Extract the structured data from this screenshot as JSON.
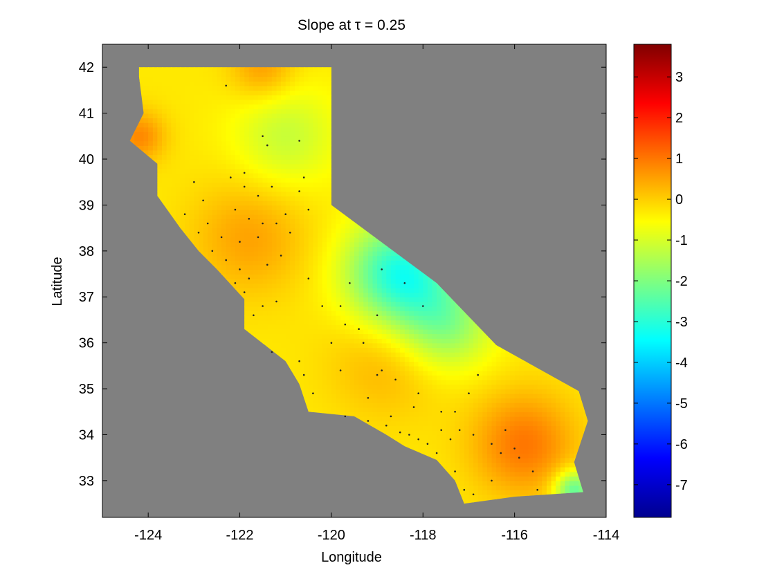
{
  "chart_data": {
    "type": "heatmap",
    "title": "Slope at τ = 0.25",
    "xlabel": "Longitude",
    "ylabel": "Latitude",
    "xlim": [
      -125,
      -114
    ],
    "ylim": [
      32.2,
      42.5
    ],
    "xticks": [
      -124,
      -122,
      -120,
      -118,
      -116,
      -114
    ],
    "yticks": [
      33,
      34,
      35,
      36,
      37,
      38,
      39,
      40,
      41,
      42
    ],
    "background_color": "#808080",
    "colorbar": {
      "colormap": "jet",
      "range": [
        -7.8,
        3.8
      ],
      "ticks": [
        -7,
        -6,
        -5,
        -4,
        -3,
        -2,
        -1,
        0,
        1,
        2,
        3
      ]
    },
    "region_outline": [
      [
        -124.2,
        42.0
      ],
      [
        -120.0,
        42.0
      ],
      [
        -120.0,
        39.0
      ],
      [
        -117.7,
        37.3
      ],
      [
        -116.4,
        35.95
      ],
      [
        -114.6,
        34.95
      ],
      [
        -114.4,
        34.3
      ],
      [
        -114.7,
        33.4
      ],
      [
        -114.5,
        32.75
      ],
      [
        -116.0,
        32.65
      ],
      [
        -117.1,
        32.5
      ],
      [
        -117.3,
        33.0
      ],
      [
        -117.7,
        33.45
      ],
      [
        -118.4,
        33.75
      ],
      [
        -118.8,
        34.0
      ],
      [
        -119.5,
        34.4
      ],
      [
        -120.5,
        34.5
      ],
      [
        -120.7,
        35.1
      ],
      [
        -121.0,
        35.6
      ],
      [
        -121.9,
        36.3
      ],
      [
        -121.9,
        36.95
      ],
      [
        -122.5,
        37.6
      ],
      [
        -122.9,
        38.0
      ],
      [
        -123.3,
        38.5
      ],
      [
        -123.8,
        39.2
      ],
      [
        -123.8,
        39.9
      ],
      [
        -124.4,
        40.4
      ],
      [
        -124.1,
        41.0
      ],
      [
        -124.2,
        41.8
      ]
    ],
    "slope_field_centers": [
      {
        "lon": -121.8,
        "lat": 38.3,
        "value": 0.5,
        "spread": 0.9
      },
      {
        "lon": -118.8,
        "lat": 35.6,
        "value": 0.3,
        "spread": 0.9
      },
      {
        "lon": -115.8,
        "lat": 33.8,
        "value": 1.0,
        "spread": 0.8
      },
      {
        "lon": -124.2,
        "lat": 40.5,
        "value": 0.8,
        "spread": 0.4
      },
      {
        "lon": -121.5,
        "lat": 42.0,
        "value": 0.6,
        "spread": 0.5
      },
      {
        "lon": -118.5,
        "lat": 37.5,
        "value": -3.2,
        "spread": 0.8
      },
      {
        "lon": -117.5,
        "lat": 36.4,
        "value": -1.8,
        "spread": 0.7
      },
      {
        "lon": -114.7,
        "lat": 32.8,
        "value": -2.5,
        "spread": 0.3
      },
      {
        "lon": -121.0,
        "lat": 40.5,
        "value": -1.2,
        "spread": 0.8
      }
    ],
    "slope_baseline": -0.3,
    "stations": [
      [
        -122.3,
        41.6
      ],
      [
        -121.5,
        40.5
      ],
      [
        -121.4,
        40.3
      ],
      [
        -120.7,
        40.4
      ],
      [
        -121.9,
        39.7
      ],
      [
        -122.2,
        39.6
      ],
      [
        -121.6,
        39.2
      ],
      [
        -121.3,
        39.4
      ],
      [
        -120.7,
        39.3
      ],
      [
        -121.9,
        39.4
      ],
      [
        -122.8,
        39.1
      ],
      [
        -122.1,
        38.9
      ],
      [
        -121.8,
        38.7
      ],
      [
        -121.5,
        38.6
      ],
      [
        -121.2,
        38.6
      ],
      [
        -121.0,
        38.8
      ],
      [
        -121.6,
        38.3
      ],
      [
        -122.0,
        38.2
      ],
      [
        -122.4,
        38.3
      ],
      [
        -122.6,
        38.0
      ],
      [
        -122.3,
        37.8
      ],
      [
        -122.0,
        37.6
      ],
      [
        -121.8,
        37.4
      ],
      [
        -121.4,
        37.7
      ],
      [
        -121.1,
        37.9
      ],
      [
        -120.9,
        38.4
      ],
      [
        -122.1,
        37.3
      ],
      [
        -121.9,
        37.1
      ],
      [
        -121.5,
        36.8
      ],
      [
        -121.7,
        36.6
      ],
      [
        -121.2,
        36.9
      ],
      [
        -120.5,
        37.4
      ],
      [
        -120.2,
        36.8
      ],
      [
        -119.8,
        36.8
      ],
      [
        -119.6,
        37.3
      ],
      [
        -119.4,
        36.3
      ],
      [
        -119.0,
        36.6
      ],
      [
        -118.9,
        35.4
      ],
      [
        -119.0,
        35.3
      ],
      [
        -118.6,
        35.2
      ],
      [
        -119.8,
        35.4
      ],
      [
        -120.6,
        35.3
      ],
      [
        -120.4,
        34.9
      ],
      [
        -119.7,
        34.4
      ],
      [
        -119.2,
        34.3
      ],
      [
        -118.8,
        34.2
      ],
      [
        -118.5,
        34.05
      ],
      [
        -118.3,
        34.0
      ],
      [
        -118.1,
        33.9
      ],
      [
        -117.9,
        33.8
      ],
      [
        -117.6,
        34.1
      ],
      [
        -117.2,
        34.1
      ],
      [
        -116.9,
        34.0
      ],
      [
        -117.4,
        33.9
      ],
      [
        -117.7,
        33.6
      ],
      [
        -117.3,
        33.2
      ],
      [
        -117.1,
        32.8
      ],
      [
        -116.9,
        32.7
      ],
      [
        -116.5,
        33.0
      ],
      [
        -116.3,
        33.6
      ],
      [
        -116.0,
        33.7
      ],
      [
        -115.6,
        33.2
      ],
      [
        -115.5,
        32.8
      ],
      [
        -115.9,
        33.5
      ],
      [
        -116.5,
        33.8
      ],
      [
        -116.2,
        34.1
      ],
      [
        -118.2,
        34.6
      ],
      [
        -118.1,
        34.9
      ],
      [
        -117.6,
        34.5
      ],
      [
        -117.3,
        34.5
      ],
      [
        -117.0,
        34.9
      ],
      [
        -116.8,
        35.3
      ],
      [
        -119.3,
        36.0
      ],
      [
        -119.7,
        36.4
      ],
      [
        -120.0,
        36.0
      ],
      [
        -121.3,
        35.8
      ],
      [
        -120.7,
        35.6
      ],
      [
        -122.9,
        38.4
      ],
      [
        -123.2,
        38.8
      ],
      [
        -123.0,
        39.5
      ],
      [
        -122.7,
        38.6
      ],
      [
        -120.6,
        39.6
      ],
      [
        -120.5,
        38.9
      ],
      [
        -118.0,
        36.8
      ],
      [
        -118.4,
        37.3
      ],
      [
        -118.9,
        37.6
      ],
      [
        -119.2,
        34.8
      ],
      [
        -118.7,
        34.4
      ]
    ]
  }
}
